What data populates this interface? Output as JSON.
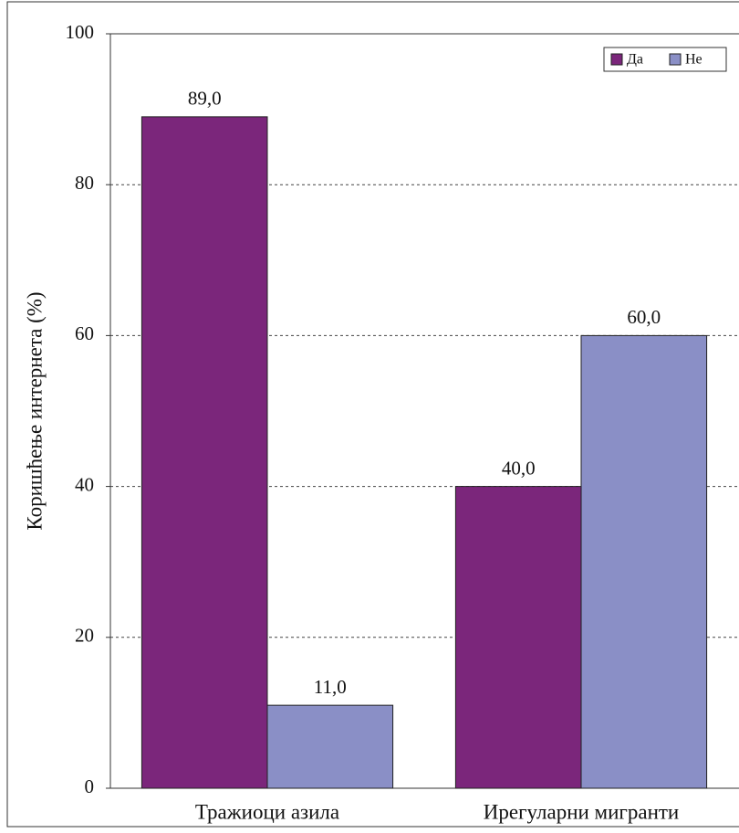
{
  "chart_data": {
    "type": "bar",
    "y_label": "Коришћење интернета (%)",
    "categories": [
      "Тражиоци азила",
      "Ирегуларни мигранти"
    ],
    "series": [
      {
        "name": "Да",
        "color": "#7b267b",
        "values": [
          89,
          40
        ],
        "value_labels": [
          "89,0",
          "40,0"
        ]
      },
      {
        "name": "Не",
        "color": "#8a8fc6",
        "values": [
          11,
          60
        ],
        "value_labels": [
          "11,0",
          "60,0"
        ]
      }
    ],
    "ylim": [
      0,
      100
    ],
    "yticks": [
      0,
      20,
      40,
      60,
      80,
      100
    ],
    "grid": true,
    "legend": "top-right"
  }
}
